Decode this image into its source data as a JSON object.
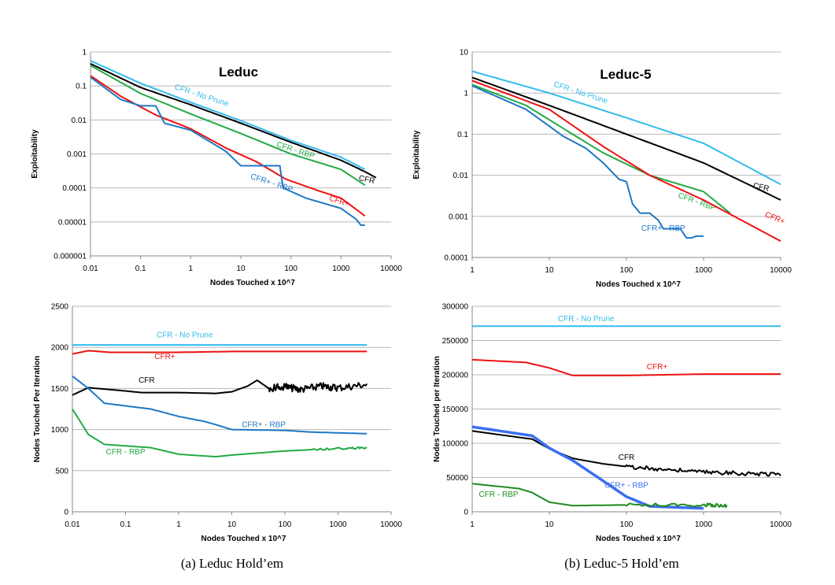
{
  "captions": {
    "a": "(a) Leduc Hold’em",
    "b": "(b) Leduc-5 Hold’em"
  },
  "chart_data": [
    {
      "id": "leduc-exploit",
      "type": "line",
      "title": "Leduc",
      "xlabel": "Nodes Touched x 10^7",
      "ylabel": "Exploitability",
      "xscale": "log",
      "yscale": "log",
      "xlim": [
        0.01,
        10000
      ],
      "ylim": [
        1e-06,
        1
      ],
      "xticks": [
        0.01,
        0.1,
        1,
        10,
        100,
        1000,
        10000
      ],
      "xtick_labels": [
        "0.01",
        "0.1",
        "1",
        "10",
        "100",
        "1000",
        "10000"
      ],
      "yticks": [
        1e-06,
        1e-05,
        0.0001,
        0.001,
        0.01,
        0.1,
        1
      ],
      "ytick_labels": [
        "0.000001",
        "0.00001",
        "0.0001",
        "0.001",
        "0.01",
        "0.1",
        "1"
      ],
      "series": [
        {
          "name": "CFR - No Prune",
          "color": "#33bbee",
          "label_at": [
            1.6,
            0.045
          ],
          "label_angle": 18,
          "points": [
            [
              0.01,
              0.55
            ],
            [
              0.1,
              0.12
            ],
            [
              1,
              0.033
            ],
            [
              10,
              0.0095
            ],
            [
              100,
              0.0025
            ],
            [
              1000,
              0.0008
            ],
            [
              3000,
              0.00035
            ]
          ]
        },
        {
          "name": "CFR",
          "color": "#000000",
          "label_at": [
            3200,
            0.00015
          ],
          "label_angle": 12,
          "points": [
            [
              0.01,
              0.45
            ],
            [
              0.1,
              0.09
            ],
            [
              1,
              0.028
            ],
            [
              10,
              0.008
            ],
            [
              100,
              0.0022
            ],
            [
              1000,
              0.00065
            ],
            [
              3000,
              0.0003
            ],
            [
              5000,
              0.0002
            ]
          ]
        },
        {
          "name": "CFR - RBP",
          "color": "#22aa44",
          "label_at": [
            120,
            0.0011
          ],
          "label_angle": 18,
          "points": [
            [
              0.01,
              0.4
            ],
            [
              0.1,
              0.06
            ],
            [
              1,
              0.015
            ],
            [
              10,
              0.004
            ],
            [
              100,
              0.001
            ],
            [
              1000,
              0.00035
            ],
            [
              3000,
              0.00012
            ]
          ]
        },
        {
          "name": "CFR+",
          "color": "#ee1111",
          "label_at": [
            900,
            3.5e-05
          ],
          "label_angle": 18,
          "points": [
            [
              0.01,
              0.2
            ],
            [
              0.04,
              0.05
            ],
            [
              0.2,
              0.014
            ],
            [
              1,
              0.0055
            ],
            [
              5,
              0.0015
            ],
            [
              20,
              0.0006
            ],
            [
              80,
              0.00018
            ],
            [
              300,
              9e-05
            ],
            [
              1000,
              5e-05
            ],
            [
              3000,
              1.5e-05
            ]
          ]
        },
        {
          "name": "CFR+ - RBP",
          "color": "#1f77c4",
          "label_at": [
            40,
            0.00012
          ],
          "label_angle": 18,
          "points": [
            [
              0.01,
              0.18
            ],
            [
              0.04,
              0.04
            ],
            [
              0.1,
              0.026
            ],
            [
              0.2,
              0.026
            ],
            [
              0.3,
              0.008
            ],
            [
              1,
              0.005
            ],
            [
              5,
              0.0012
            ],
            [
              10,
              0.00045
            ],
            [
              60,
              0.00045
            ],
            [
              70,
              0.0001
            ],
            [
              200,
              5e-05
            ],
            [
              1000,
              2.5e-05
            ],
            [
              2000,
              1.2e-05
            ],
            [
              2500,
              8e-06
            ],
            [
              3000,
              8e-06
            ]
          ]
        }
      ]
    },
    {
      "id": "leduc5-exploit",
      "type": "line",
      "title": "Leduc-5",
      "xlabel": "Nodes Touched x 10^7",
      "ylabel": "Exploitability",
      "xscale": "log",
      "yscale": "log",
      "xlim": [
        1,
        10000
      ],
      "ylim": [
        0.0001,
        10
      ],
      "xticks": [
        1,
        10,
        100,
        1000,
        10000
      ],
      "xtick_labels": [
        "1",
        "10",
        "100",
        "1000",
        "10000"
      ],
      "yticks": [
        0.0001,
        0.001,
        0.01,
        0.1,
        1,
        10
      ],
      "ytick_labels": [
        "0.0001",
        "0.001",
        "0.01",
        "0.1",
        "1",
        "10"
      ],
      "series": [
        {
          "name": "CFR - No Prune",
          "color": "#33bbee",
          "label_at": [
            25,
            0.9
          ],
          "label_angle": 18,
          "points": [
            [
              1,
              3.4
            ],
            [
              10,
              1.0
            ],
            [
              100,
              0.25
            ],
            [
              1000,
              0.06
            ],
            [
              10000,
              0.006
            ]
          ]
        },
        {
          "name": "CFR",
          "color": "#000000",
          "label_at": [
            5500,
            0.0045
          ],
          "label_angle": 12,
          "points": [
            [
              1,
              2.4
            ],
            [
              10,
              0.5
            ],
            [
              100,
              0.1
            ],
            [
              1000,
              0.02
            ],
            [
              10000,
              0.0025
            ]
          ]
        },
        {
          "name": "CFR - RBP",
          "color": "#22aa44",
          "label_at": [
            800,
            0.002
          ],
          "label_angle": 20,
          "points": [
            [
              1,
              1.6
            ],
            [
              5,
              0.5
            ],
            [
              20,
              0.1
            ],
            [
              50,
              0.035
            ],
            [
              200,
              0.01
            ],
            [
              1000,
              0.004
            ],
            [
              2200,
              0.0012
            ]
          ]
        },
        {
          "name": "CFR+",
          "color": "#ee1111",
          "label_at": [
            8200,
            0.0008
          ],
          "label_angle": 22,
          "points": [
            [
              1,
              2.0
            ],
            [
              10,
              0.4
            ],
            [
              50,
              0.05
            ],
            [
              200,
              0.01
            ],
            [
              1000,
              0.0025
            ],
            [
              10000,
              0.00025
            ]
          ]
        },
        {
          "name": "CFR+ - RBP",
          "color": "#1f77c4",
          "label_at": [
            300,
            0.00045
          ],
          "label_angle": 0,
          "points": [
            [
              1,
              1.5
            ],
            [
              5,
              0.4
            ],
            [
              15,
              0.09
            ],
            [
              30,
              0.045
            ],
            [
              50,
              0.02
            ],
            [
              80,
              0.008
            ],
            [
              100,
              0.007
            ],
            [
              120,
              0.002
            ],
            [
              150,
              0.0012
            ],
            [
              200,
              0.0012
            ],
            [
              260,
              0.0008
            ],
            [
              300,
              0.0005
            ],
            [
              500,
              0.0005
            ],
            [
              600,
              0.0003
            ],
            [
              700,
              0.0003
            ],
            [
              800,
              0.00033
            ],
            [
              1000,
              0.00033
            ]
          ]
        }
      ]
    },
    {
      "id": "leduc-nodes",
      "type": "line",
      "title": "",
      "xlabel": "Nodes Touched x 10^7",
      "ylabel": "Nodes Touched Per Iteration",
      "xscale": "log",
      "yscale": "linear",
      "xlim": [
        0.01,
        10000
      ],
      "ylim": [
        0,
        2500
      ],
      "xticks": [
        0.01,
        0.1,
        1,
        10,
        100,
        1000,
        10000
      ],
      "xtick_labels": [
        "0.01",
        "0.1",
        "1",
        "10",
        "100",
        "1000",
        "10000"
      ],
      "yticks": [
        0,
        500,
        1000,
        1500,
        2000,
        2500
      ],
      "ytick_labels": [
        "0",
        "500",
        "1000",
        "1500",
        "2000",
        "2500"
      ],
      "series": [
        {
          "name": "CFR - No Prune",
          "color": "#33bbee",
          "label_at": [
            1.3,
            2120
          ],
          "label_angle": 0,
          "points": [
            [
              0.01,
              2030
            ],
            [
              3500,
              2030
            ]
          ]
        },
        {
          "name": "CFR+",
          "color": "#ee1111",
          "label_at": [
            0.55,
            1860
          ],
          "label_angle": 0,
          "points": [
            [
              0.01,
              1920
            ],
            [
              0.02,
              1960
            ],
            [
              0.05,
              1940
            ],
            [
              1,
              1940
            ],
            [
              10,
              1950
            ],
            [
              100,
              1950
            ],
            [
              3500,
              1950
            ]
          ]
        },
        {
          "name": "CFR",
          "color": "#000000",
          "label_at": [
            0.25,
            1570
          ],
          "label_angle": 0,
          "points": [
            [
              0.01,
              1420
            ],
            [
              0.02,
              1510
            ],
            [
              0.1,
              1470
            ],
            [
              0.2,
              1450
            ],
            [
              1,
              1450
            ],
            [
              5,
              1440
            ],
            [
              10,
              1460
            ],
            [
              20,
              1530
            ],
            [
              30,
              1600
            ],
            [
              50,
              1500
            ],
            [
              100,
              1520
            ],
            [
              200,
              1490
            ],
            [
              500,
              1530
            ],
            [
              1000,
              1510
            ],
            [
              3500,
              1550
            ]
          ],
          "noise": {
            "from": 50,
            "to": 3500,
            "amplitude": 45
          }
        },
        {
          "name": "CFR+ - RBP",
          "color": "#1f77c4",
          "label_at": [
            40,
            1030
          ],
          "label_angle": 0,
          "points": [
            [
              0.01,
              1650
            ],
            [
              0.02,
              1500
            ],
            [
              0.04,
              1320
            ],
            [
              0.3,
              1250
            ],
            [
              1,
              1160
            ],
            [
              3,
              1100
            ],
            [
              5,
              1060
            ],
            [
              10,
              1000
            ],
            [
              100,
              990
            ],
            [
              300,
              970
            ],
            [
              1000,
              960
            ],
            [
              3500,
              950
            ]
          ]
        },
        {
          "name": "CFR - RBP",
          "color": "#22aa44",
          "label_at": [
            0.1,
            700
          ],
          "label_angle": 0,
          "points": [
            [
              0.01,
              1250
            ],
            [
              0.02,
              940
            ],
            [
              0.04,
              820
            ],
            [
              0.3,
              780
            ],
            [
              1,
              700
            ],
            [
              5,
              670
            ],
            [
              10,
              690
            ],
            [
              100,
              740
            ],
            [
              1000,
              770
            ],
            [
              3500,
              780
            ]
          ],
          "noise": {
            "from": 300,
            "to": 3500,
            "amplitude": 12
          }
        }
      ]
    },
    {
      "id": "leduc5-nodes",
      "type": "line",
      "title": "",
      "xlabel": "Nodes Touched x 10^7",
      "ylabel": "Nodes Touched per Iteration",
      "xscale": "log",
      "yscale": "linear",
      "xlim": [
        1,
        10000
      ],
      "ylim": [
        0,
        300000
      ],
      "xticks": [
        1,
        10,
        100,
        1000,
        10000
      ],
      "xtick_labels": [
        "1",
        "10",
        "100",
        "1000",
        "10000"
      ],
      "yticks": [
        0,
        50000,
        100000,
        150000,
        200000,
        250000,
        300000
      ],
      "ytick_labels": [
        "0",
        "50000",
        "100000",
        "150000",
        "200000",
        "250000",
        "300000"
      ],
      "series": [
        {
          "name": "CFR - No Prune",
          "color": "#33bbee",
          "label_at": [
            30,
            278000
          ],
          "label_angle": 0,
          "points": [
            [
              1,
              271000
            ],
            [
              10000,
              271000
            ]
          ]
        },
        {
          "name": "CFR+",
          "color": "#ee1111",
          "label_at": [
            250,
            208000
          ],
          "label_angle": 0,
          "points": [
            [
              1,
              222000
            ],
            [
              5,
              218000
            ],
            [
              10,
              210000
            ],
            [
              20,
              199000
            ],
            [
              50,
              199000
            ],
            [
              100,
              199000
            ],
            [
              1000,
              201000
            ],
            [
              10000,
              201000
            ]
          ]
        },
        {
          "name": "CFR",
          "color": "#000000",
          "label_at": [
            100,
            76000
          ],
          "label_angle": 0,
          "points": [
            [
              1,
              118000
            ],
            [
              6,
              106000
            ],
            [
              10,
              92000
            ],
            [
              20,
              78000
            ],
            [
              50,
              70000
            ],
            [
              100,
              66000
            ],
            [
              300,
              62000
            ],
            [
              1000,
              58000
            ],
            [
              3000,
              56000
            ],
            [
              10000,
              55000
            ]
          ],
          "noise": {
            "from": 100,
            "to": 10000,
            "amplitude": 3000
          }
        },
        {
          "name": "CFR+ - RBP",
          "color": "#3a6ff0",
          "label_at": [
            100,
            35000
          ],
          "label_angle": 0,
          "width": 3.5,
          "points": [
            [
              1,
              124000
            ],
            [
              6,
              111000
            ],
            [
              10,
              93000
            ],
            [
              20,
              75000
            ],
            [
              50,
              45000
            ],
            [
              100,
              22000
            ],
            [
              200,
              8000
            ],
            [
              1000,
              5000
            ]
          ]
        },
        {
          "name": "CFR - RBP",
          "color": "#1e8a1e",
          "label_at": [
            2.2,
            22000
          ],
          "label_angle": 0,
          "points": [
            [
              1,
              41000
            ],
            [
              4,
              34000
            ],
            [
              6,
              28000
            ],
            [
              10,
              14000
            ],
            [
              20,
              9000
            ],
            [
              100,
              10000
            ],
            [
              1000,
              10000
            ],
            [
              2000,
              9000
            ]
          ],
          "noise": {
            "from": 100,
            "to": 2000,
            "amplitude": 2500
          }
        }
      ]
    }
  ]
}
